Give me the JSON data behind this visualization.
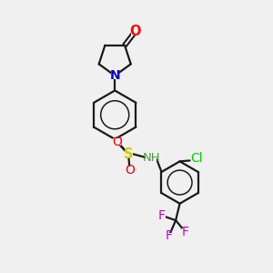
{
  "background_color": "#f0f0f0",
  "bond_color": "#1a1a1a",
  "atom_colors": {
    "O": "#ff0000",
    "N_blue": "#0000cc",
    "N_aniline": "#4a9a4a",
    "S": "#cccc00",
    "Cl": "#00cc00",
    "F": "#cc00cc",
    "H": "#7a7a7a",
    "C": "#1a1a1a"
  },
  "figsize": [
    3.0,
    3.0
  ],
  "dpi": 100,
  "xlim": [
    0,
    10
  ],
  "ylim": [
    0,
    10
  ]
}
